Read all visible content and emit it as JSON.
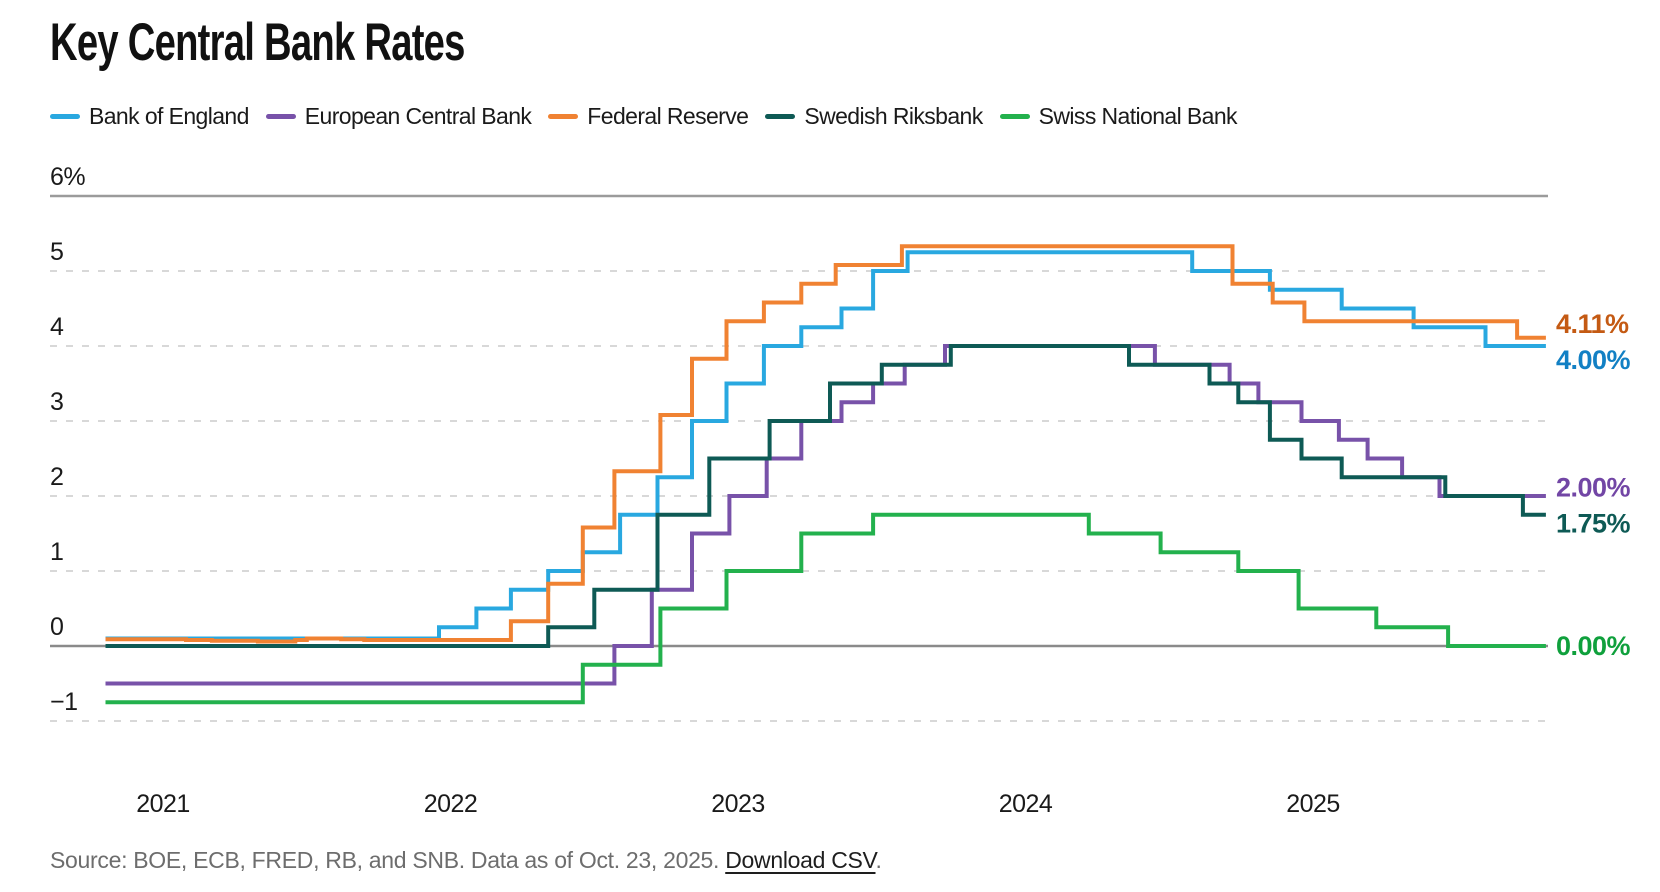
{
  "title": "Key Central Bank Rates",
  "source": {
    "prefix": "Source: BOE, ECB, FRED, RB, and SNB. Data as of Oct. 23, 2025. ",
    "link_label": "Download CSV",
    "suffix": "."
  },
  "chart_data": {
    "type": "line",
    "subtype": "step",
    "title": "Key Central Bank Rates",
    "unit": "%",
    "grid": "horizontal-dashed",
    "legend_position": "top",
    "x_domain": [
      2020.8,
      2025.81
    ],
    "y_domain": [
      -1.4,
      6
    ],
    "x_ticks": [
      {
        "t": 2021,
        "label": "2021"
      },
      {
        "t": 2022,
        "label": "2022"
      },
      {
        "t": 2023,
        "label": "2023"
      },
      {
        "t": 2024,
        "label": "2024"
      },
      {
        "t": 2025,
        "label": "2025"
      }
    ],
    "y_ticks": [
      {
        "v": 6,
        "label": "6%",
        "style": "solid"
      },
      {
        "v": 5,
        "label": "5",
        "style": "dashed"
      },
      {
        "v": 4,
        "label": "4",
        "style": "dashed"
      },
      {
        "v": 3,
        "label": "3",
        "style": "dashed"
      },
      {
        "v": 2,
        "label": "2",
        "style": "dashed"
      },
      {
        "v": 1,
        "label": "1",
        "style": "dashed"
      },
      {
        "v": 0,
        "label": "0",
        "style": "solid"
      },
      {
        "v": -1,
        "label": "−1",
        "style": "dashed"
      }
    ],
    "series": [
      {
        "id": "bank-of-england",
        "name": "Bank of England",
        "color": "#29a8e0",
        "label_color": "#1280c4",
        "end_label": "4.00%",
        "points": [
          [
            2020.8,
            0.1
          ],
          [
            2021.96,
            0.25
          ],
          [
            2022.09,
            0.5
          ],
          [
            2022.21,
            0.75
          ],
          [
            2022.34,
            1.0
          ],
          [
            2022.46,
            1.25
          ],
          [
            2022.59,
            1.75
          ],
          [
            2022.72,
            2.25
          ],
          [
            2022.84,
            3.0
          ],
          [
            2022.96,
            3.5
          ],
          [
            2023.09,
            4.0
          ],
          [
            2023.22,
            4.25
          ],
          [
            2023.36,
            4.5
          ],
          [
            2023.47,
            5.0
          ],
          [
            2023.59,
            5.25
          ],
          [
            2024.58,
            5.0
          ],
          [
            2024.85,
            4.75
          ],
          [
            2025.1,
            4.5
          ],
          [
            2025.35,
            4.25
          ],
          [
            2025.6,
            4.0
          ]
        ]
      },
      {
        "id": "european-central-bank",
        "name": "European Central Bank",
        "color": "#7852a9",
        "label_color": "#7246a5",
        "end_label": "2.00%",
        "points": [
          [
            2020.8,
            -0.5
          ],
          [
            2022.57,
            0.0
          ],
          [
            2022.7,
            0.75
          ],
          [
            2022.84,
            1.5
          ],
          [
            2022.97,
            2.0
          ],
          [
            2023.1,
            2.5
          ],
          [
            2023.22,
            3.0
          ],
          [
            2023.36,
            3.25
          ],
          [
            2023.47,
            3.5
          ],
          [
            2023.58,
            3.75
          ],
          [
            2023.72,
            4.0
          ],
          [
            2024.45,
            3.75
          ],
          [
            2024.71,
            3.5
          ],
          [
            2024.81,
            3.25
          ],
          [
            2024.96,
            3.0
          ],
          [
            2025.09,
            2.75
          ],
          [
            2025.19,
            2.5
          ],
          [
            2025.31,
            2.25
          ],
          [
            2025.44,
            2.0
          ]
        ]
      },
      {
        "id": "federal-reserve",
        "name": "Federal Reserve",
        "color": "#f08232",
        "label_color": "#c45a13",
        "end_label": "4.11%",
        "points": [
          [
            2020.8,
            0.09
          ],
          [
            2021.08,
            0.08
          ],
          [
            2021.17,
            0.07
          ],
          [
            2021.33,
            0.06
          ],
          [
            2021.46,
            0.08
          ],
          [
            2021.5,
            0.1
          ],
          [
            2021.62,
            0.09
          ],
          [
            2021.7,
            0.08
          ],
          [
            2022.21,
            0.33
          ],
          [
            2022.34,
            0.83
          ],
          [
            2022.46,
            1.58
          ],
          [
            2022.57,
            2.33
          ],
          [
            2022.73,
            3.08
          ],
          [
            2022.84,
            3.83
          ],
          [
            2022.96,
            4.33
          ],
          [
            2023.09,
            4.58
          ],
          [
            2023.22,
            4.83
          ],
          [
            2023.34,
            5.08
          ],
          [
            2023.57,
            5.33
          ],
          [
            2024.72,
            4.83
          ],
          [
            2024.86,
            4.58
          ],
          [
            2024.97,
            4.33
          ],
          [
            2025.71,
            4.11
          ]
        ]
      },
      {
        "id": "swedish-riksbank",
        "name": "Swedish Riksbank",
        "color": "#0e5a55",
        "label_color": "#0e5a55",
        "end_label": "1.75%",
        "points": [
          [
            2020.8,
            0.0
          ],
          [
            2022.34,
            0.25
          ],
          [
            2022.5,
            0.75
          ],
          [
            2022.72,
            1.75
          ],
          [
            2022.9,
            2.5
          ],
          [
            2023.11,
            3.0
          ],
          [
            2023.32,
            3.5
          ],
          [
            2023.5,
            3.75
          ],
          [
            2023.74,
            4.0
          ],
          [
            2024.36,
            3.75
          ],
          [
            2024.64,
            3.5
          ],
          [
            2024.74,
            3.25
          ],
          [
            2024.85,
            2.75
          ],
          [
            2024.96,
            2.5
          ],
          [
            2025.1,
            2.25
          ],
          [
            2025.46,
            2.0
          ],
          [
            2025.73,
            1.75
          ]
        ]
      },
      {
        "id": "swiss-national-bank",
        "name": "Swiss National Bank",
        "color": "#23b14d",
        "label_color": "#0fa03c",
        "end_label": "0.00%",
        "points": [
          [
            2020.8,
            -0.75
          ],
          [
            2022.46,
            -0.25
          ],
          [
            2022.73,
            0.5
          ],
          [
            2022.96,
            1.0
          ],
          [
            2023.22,
            1.5
          ],
          [
            2023.47,
            1.75
          ],
          [
            2024.22,
            1.5
          ],
          [
            2024.47,
            1.25
          ],
          [
            2024.74,
            1.0
          ],
          [
            2024.95,
            0.5
          ],
          [
            2025.22,
            0.25
          ],
          [
            2025.47,
            0.0
          ]
        ]
      }
    ]
  }
}
